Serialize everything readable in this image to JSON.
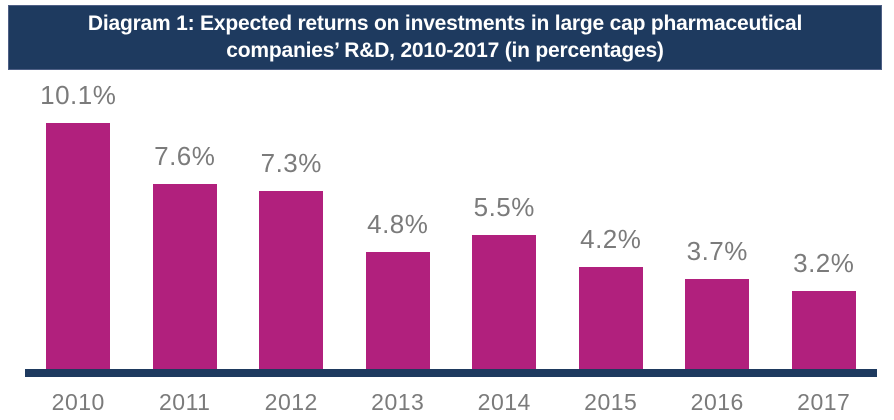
{
  "header": {
    "title": "Diagram 1: Expected returns on investments in large cap pharmaceutical companies’ R&D, 2010-2017 (in percentages)",
    "title_lines": [
      "Diagram 1: Expected returns on investments in large cap pharmaceutical",
      "companies’ R&D, 2010-2017 (in percentages)"
    ],
    "background_color": "#1e3a5f",
    "text_color": "#ffffff"
  },
  "chart_data": {
    "type": "bar",
    "title": "Diagram 1: Expected returns on investments in large cap pharmaceutical companies’ R&D, 2010-2017 (in percentages)",
    "categories": [
      "2010",
      "2011",
      "2012",
      "2013",
      "2014",
      "2015",
      "2016",
      "2017"
    ],
    "values": [
      10.1,
      7.6,
      7.3,
      4.8,
      5.5,
      4.2,
      3.7,
      3.2
    ],
    "value_labels": [
      "10.1%",
      "7.6%",
      "7.3%",
      "4.8%",
      "5.5%",
      "4.2%",
      "3.7%",
      "3.2%"
    ],
    "unit": "percent",
    "xlabel": "",
    "ylabel": "",
    "ylim": [
      0,
      10.5
    ],
    "grid": false,
    "legend": false,
    "bar_color": "#b1207d",
    "axis_color": "#1e3a5f",
    "label_color": "#7b7b7b"
  }
}
